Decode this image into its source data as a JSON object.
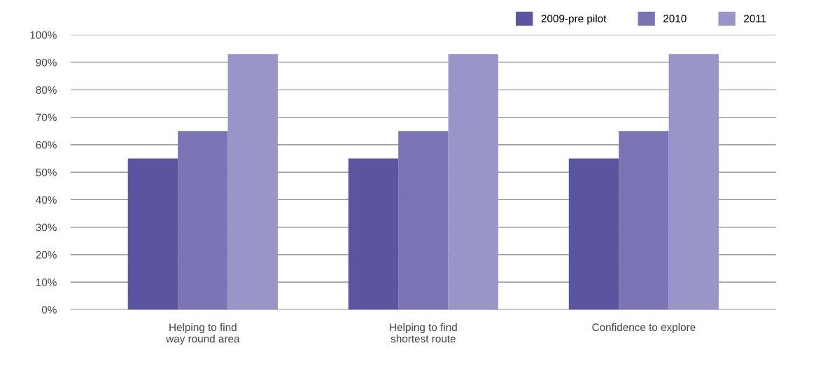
{
  "chart_data": {
    "type": "bar",
    "categories": [
      "Helping to find\nway round area",
      "Helping to find\nshortest route",
      "Confidence to explore"
    ],
    "series": [
      {
        "name": "2009-pre pilot",
        "color": "#5b55a0",
        "values": [
          55,
          55,
          55
        ]
      },
      {
        "name": "2010",
        "color": "#7a74b5",
        "values": [
          65,
          65,
          65
        ]
      },
      {
        "name": "2011",
        "color": "#9a95c8",
        "values": [
          93,
          93,
          93
        ]
      }
    ],
    "ylim": [
      0,
      100
    ],
    "yticks": [
      {
        "value": 0,
        "label": "0%"
      },
      {
        "value": 10,
        "label": "10%"
      },
      {
        "value": 20,
        "label": "20%"
      },
      {
        "value": 30,
        "label": "30%"
      },
      {
        "value": 40,
        "label": "40%"
      },
      {
        "value": 50,
        "label": "50%"
      },
      {
        "value": 60,
        "label": "60%"
      },
      {
        "value": 70,
        "label": "70%"
      },
      {
        "value": 80,
        "label": "80%"
      },
      {
        "value": 90,
        "label": "90%"
      },
      {
        "value": 100,
        "label": "100%"
      }
    ],
    "grid": "y",
    "legend": "top right"
  }
}
